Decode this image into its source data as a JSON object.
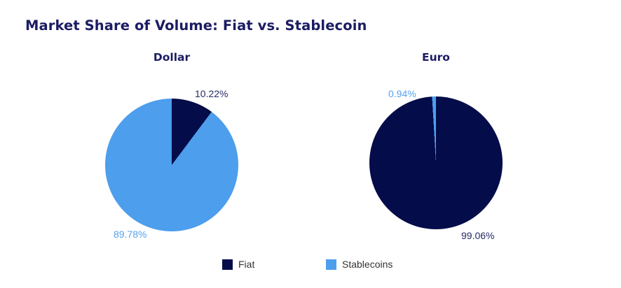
{
  "title": "Market Share of Volume: Fiat vs. Stablecoin",
  "colors": {
    "fiat": "#040C4A",
    "stablecoin": "#4D9EEC",
    "heading": "#1B1C63",
    "fiat_label": "#262A64",
    "stablecoin_label": "#55A2EE",
    "legend_text": "#333333",
    "background": "#FFFFFF"
  },
  "legend": {
    "position": "bottom",
    "items": [
      {
        "label": "Fiat",
        "swatch": "fiat"
      },
      {
        "label": "Stablecoins",
        "swatch": "stablecoin"
      }
    ]
  },
  "chart_data": [
    {
      "type": "pie",
      "title": "Dollar",
      "categories": [
        "Fiat",
        "Stablecoins"
      ],
      "values": [
        10.22,
        89.78
      ],
      "slice_colors": [
        "fiat",
        "stablecoin"
      ],
      "labels": {
        "fiat": "10.22%",
        "stablecoin": "89.78%"
      },
      "start_angle_deg": 0,
      "direction": "clockwise",
      "legend_position": "bottom"
    },
    {
      "type": "pie",
      "title": "Euro",
      "categories": [
        "Fiat",
        "Stablecoins"
      ],
      "values": [
        99.06,
        0.94
      ],
      "slice_colors": [
        "fiat",
        "stablecoin"
      ],
      "labels": {
        "fiat": "99.06%",
        "stablecoin": "0.94%"
      },
      "start_angle_deg": 0,
      "direction": "clockwise",
      "legend_position": "bottom"
    }
  ]
}
